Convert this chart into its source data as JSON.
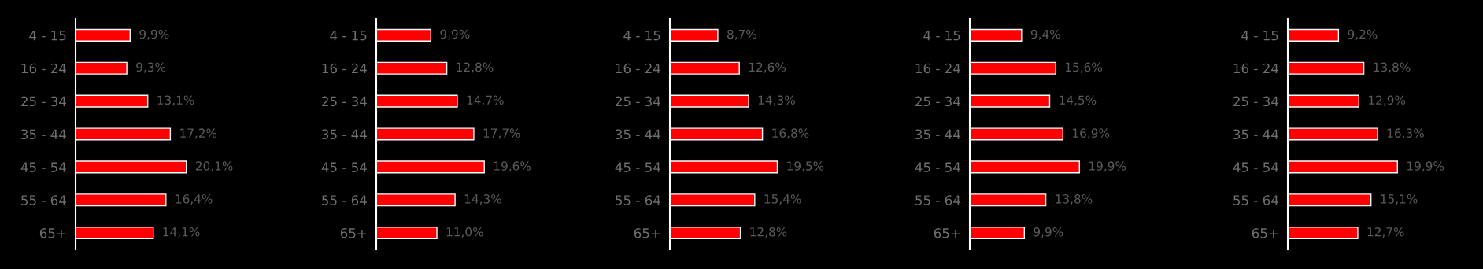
{
  "chart_data": [
    {
      "type": "bar",
      "orientation": "horizontal",
      "categories": [
        "4 - 15",
        "16 - 24",
        "25 - 34",
        "35 - 44",
        "45 - 54",
        "55 - 64",
        "65+"
      ],
      "values": [
        9.9,
        9.3,
        13.1,
        17.2,
        20.1,
        16.4,
        14.1
      ],
      "value_labels": [
        "9,9%",
        "9,3%",
        "13,1%",
        "17,2%",
        "20,1%",
        "16,4%",
        "14,1%"
      ],
      "color": "#ff0000",
      "tick_labels": "y",
      "grid": false,
      "legend": false
    },
    {
      "type": "bar",
      "orientation": "horizontal",
      "categories": [
        "4 - 15",
        "16 - 24",
        "25 - 34",
        "35 - 44",
        "45 - 54",
        "55 - 64",
        "65+"
      ],
      "values": [
        9.9,
        12.8,
        14.7,
        17.7,
        19.6,
        14.3,
        11.0
      ],
      "value_labels": [
        "9,9%",
        "12,8%",
        "14,7%",
        "17,7%",
        "19,6%",
        "14,3%",
        "11,0%"
      ],
      "color": "#ff0000",
      "tick_labels": "y",
      "grid": false,
      "legend": false
    },
    {
      "type": "bar",
      "orientation": "horizontal",
      "categories": [
        "4 - 15",
        "16 - 24",
        "25 - 34",
        "35 - 44",
        "45 - 54",
        "55 - 64",
        "65+"
      ],
      "values": [
        8.7,
        12.6,
        14.3,
        16.8,
        19.5,
        15.4,
        12.8
      ],
      "value_labels": [
        "8,7%",
        "12,6%",
        "14,3%",
        "16,8%",
        "19,5%",
        "15,4%",
        "12,8%"
      ],
      "color": "#ff0000",
      "tick_labels": "y",
      "grid": false,
      "legend": false
    },
    {
      "type": "bar",
      "orientation": "horizontal",
      "categories": [
        "4 - 15",
        "16 - 24",
        "25 - 34",
        "35 - 44",
        "45 - 54",
        "55 - 64",
        "65+"
      ],
      "values": [
        9.4,
        15.6,
        14.5,
        16.9,
        19.9,
        13.8,
        9.9
      ],
      "value_labels": [
        "9,4%",
        "15,6%",
        "14,5%",
        "16,9%",
        "19,9%",
        "13,8%",
        "9,9%"
      ],
      "color": "#ff0000",
      "tick_labels": "y",
      "grid": false,
      "legend": false
    },
    {
      "type": "bar",
      "orientation": "horizontal",
      "categories": [
        "4 - 15",
        "16 - 24",
        "25 - 34",
        "35 - 44",
        "45 - 54",
        "55 - 64",
        "65+"
      ],
      "values": [
        9.2,
        13.8,
        12.9,
        16.3,
        19.9,
        15.1,
        12.7
      ],
      "value_labels": [
        "9,2%",
        "13,8%",
        "12,9%",
        "16,3%",
        "19,9%",
        "15,1%",
        "12,7%"
      ],
      "color": "#ff0000",
      "tick_labels": "y",
      "grid": false,
      "legend": false
    }
  ]
}
